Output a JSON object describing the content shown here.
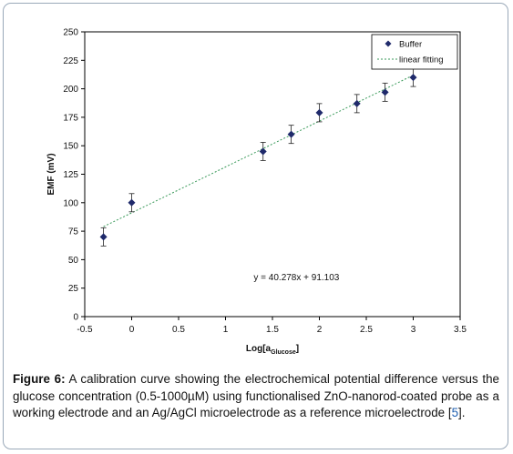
{
  "chart_data": {
    "type": "scatter",
    "xlabel_main": "Log[a",
    "xlabel_sub": "Glucose",
    "xlabel_end": "]",
    "ylabel": "EMF (mV)",
    "xlim": [
      -0.5,
      3.5
    ],
    "ylim": [
      0,
      250
    ],
    "x_ticks": [
      -0.5,
      0,
      0.5,
      1,
      1.5,
      2,
      2.5,
      3,
      3.5
    ],
    "x_tick_labels": [
      "-0.5",
      "0",
      "0.5",
      "1",
      "1.5",
      "2",
      "2.5",
      "3",
      "3.5"
    ],
    "y_ticks": [
      0,
      25,
      50,
      75,
      100,
      125,
      150,
      175,
      200,
      225,
      250
    ],
    "y_tick_labels": [
      "0",
      "25",
      "50",
      "75",
      "100",
      "125",
      "150",
      "175",
      "200",
      "225",
      "250"
    ],
    "grid": false,
    "legend_position": "top-right",
    "series": [
      {
        "name": "Buffer",
        "color": "#1f2a6b",
        "marker": "diamond",
        "x": [
          -0.3,
          0,
          1.4,
          1.7,
          2,
          2.4,
          2.7,
          3
        ],
        "y": [
          70,
          100,
          145,
          160,
          179,
          187,
          197,
          210
        ],
        "err": [
          8,
          8,
          8,
          8,
          8,
          8,
          8,
          8
        ]
      }
    ],
    "fit": {
      "name": "linear fitting",
      "slope": 40.278,
      "intercept": 91.103,
      "x_range": [
        -0.3,
        3
      ],
      "color": "#3a9a5a",
      "equation": "y = 40.278x + 91.103"
    }
  },
  "caption": {
    "label": "Figure 6:",
    "text_before_ref": " A calibration curve showing the electrochemical potential difference versus the glucose concentration (0.5-1000µM) using functionalised ZnO-nanorod-coated probe as a working electrode and an Ag/AgCl microelectrode as a reference microelectrode [",
    "ref": "5",
    "text_after_ref": "]."
  }
}
